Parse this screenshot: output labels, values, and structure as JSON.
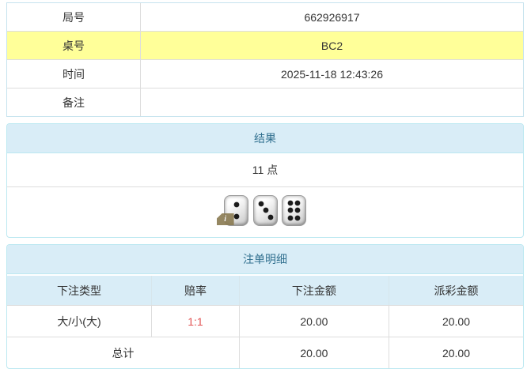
{
  "info_table": {
    "rows": [
      {
        "label": "局号",
        "value": "662926917"
      },
      {
        "label": "桌号",
        "value": "BC2"
      },
      {
        "label": "时间",
        "value": "2025-11-18 12:43:26"
      },
      {
        "label": "备注",
        "value": ""
      }
    ]
  },
  "result_panel": {
    "title": "结果",
    "points_text": "11 点",
    "dice": [
      2,
      3,
      6
    ],
    "info_icon": "i"
  },
  "bet_panel": {
    "title": "注单明细",
    "columns": [
      "下注类型",
      "赔率",
      "下注金额",
      "派彩金额"
    ],
    "rows": [
      {
        "bet_type": "大/小(大)",
        "odds": "1:1",
        "bet_amount": "20.00",
        "payout_amount": "20.00"
      }
    ],
    "total_row": {
      "label": "总计",
      "bet_amount": "20.00",
      "payout_amount": "20.00"
    }
  },
  "colors": {
    "panel_border": "#bce8f1",
    "panel_heading_bg": "#d9edf7",
    "panel_heading_text": "#31708f",
    "highlight_row_bg": "#ffff99",
    "row_border": "#dddddd",
    "odds_red": "#e25353",
    "text": "#333333"
  }
}
